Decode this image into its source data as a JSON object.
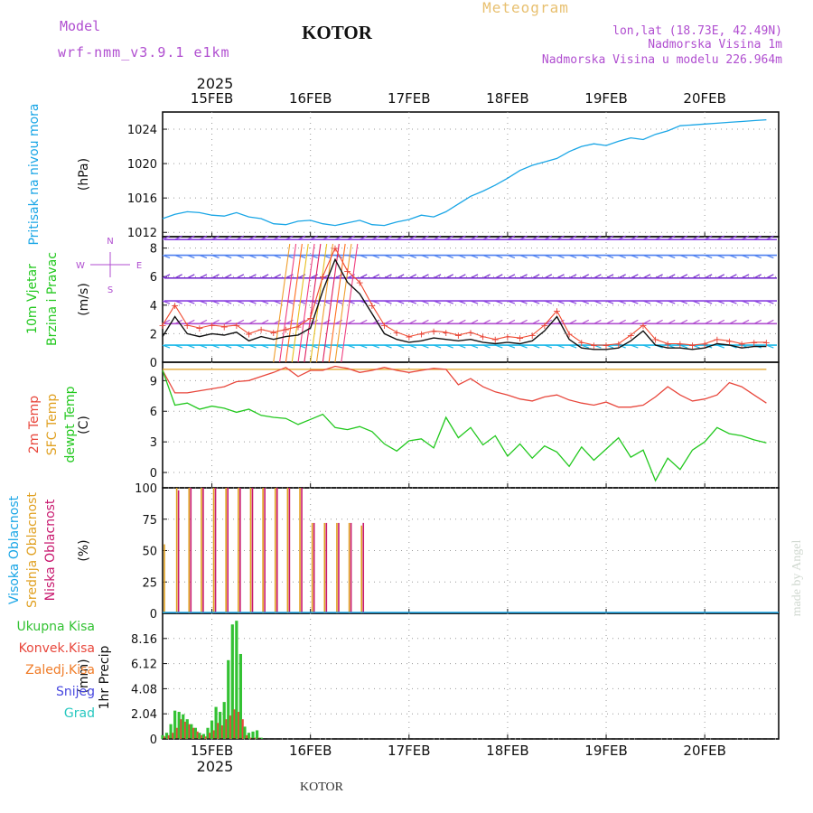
{
  "header": {
    "model_label": "Model",
    "model_name": "wrf-nmm_v3.9.1 e1km",
    "station": "KOTOR",
    "title": "Meteogram",
    "lonlat": "lon,lat (18.73E, 42.49N)",
    "elevation": "Nadmorska Visina 1m",
    "model_elevation": "Nadmorska Visina u modelu 226.964m",
    "year_top": "2025",
    "year_bottom": "2025",
    "footer_station": "KOTOR",
    "credit": "made by Angel"
  },
  "colors": {
    "pressure": "#1aa6e6",
    "temp": "#e8473c",
    "sfc_temp": "#e0a020",
    "dewpt": "#22c81e",
    "high_cloud": "#1aa6e6",
    "mid_cloud": "#e0a020",
    "low_cloud": "#c8186e",
    "total_precip": "#33c233",
    "conv_precip": "#e8473c",
    "frozen_precip": "#f07c28",
    "snow": "#4848e0",
    "graupel": "#28c8c0",
    "wind_label": "#22c81e",
    "wind_label2": "#22c81e",
    "compass": "#b04ed0"
  },
  "chart_data": [
    {
      "type": "line",
      "panel": "pressure",
      "ylabel_lines": [
        "Pritisak na nivou mora"
      ],
      "unit": "(hPa)",
      "x_ticks": [
        "15FEB",
        "16FEB",
        "17FEB",
        "18FEB",
        "19FEB",
        "20FEB"
      ],
      "ylim": [
        1011.5,
        1026
      ],
      "yticks": [
        "1012",
        "1016",
        "1020",
        "1024"
      ],
      "ytick_values": [
        1012,
        1016,
        1020,
        1024
      ],
      "x_hours": [
        0,
        3,
        6,
        9,
        12,
        15,
        18,
        21,
        24,
        27,
        30,
        33,
        36,
        39,
        42,
        45,
        48,
        51,
        54,
        57,
        60,
        63,
        66,
        69,
        72,
        75,
        78,
        81,
        84,
        87,
        90,
        93,
        96,
        99,
        102,
        105,
        108,
        111,
        114,
        117,
        120,
        123,
        126,
        129,
        132,
        135,
        138,
        141,
        144,
        147
      ],
      "series": [
        {
          "values": [
            1013.6,
            1014.1,
            1014.4,
            1014.3,
            1014.0,
            1013.9,
            1014.3,
            1013.8,
            1013.6,
            1013.0,
            1012.9,
            1013.3,
            1013.4,
            1013.0,
            1012.8,
            1013.1,
            1013.4,
            1012.9,
            1012.8,
            1013.2,
            1013.5,
            1014.0,
            1013.8,
            1014.4,
            1015.3,
            1016.2,
            1016.8,
            1017.5,
            1018.3,
            1019.2,
            1019.8,
            1020.2,
            1020.6,
            1021.4,
            1022.0,
            1022.3,
            1022.1,
            1022.6,
            1023.0,
            1022.8,
            1023.4,
            1023.8,
            1024.4,
            1024.5,
            1024.6,
            1024.7,
            1024.8,
            1024.9,
            1025.0,
            1025.1
          ]
        }
      ]
    },
    {
      "type": "line",
      "panel": "wind",
      "ylabel_lines": [
        "10m Vjetar",
        "Brzina i Pravac"
      ],
      "unit": "(m/s)",
      "ylim": [
        0,
        8.8
      ],
      "yticks": [
        "0",
        "2",
        "4",
        "6",
        "8"
      ],
      "ytick_values": [
        0,
        2,
        4,
        6,
        8
      ],
      "compass": [
        "N",
        "E",
        "S",
        "W"
      ],
      "x_hours": [
        0,
        3,
        6,
        9,
        12,
        15,
        18,
        21,
        24,
        27,
        30,
        33,
        36,
        39,
        42,
        45,
        48,
        51,
        54,
        57,
        60,
        63,
        66,
        69,
        72,
        75,
        78,
        81,
        84,
        87,
        90,
        93,
        96,
        99,
        102,
        105,
        108,
        111,
        114,
        117,
        120,
        123,
        126,
        129,
        132,
        135,
        138,
        141,
        144,
        147
      ],
      "series": [
        {
          "name": "speed",
          "values": [
            1.8,
            3.2,
            2.0,
            1.8,
            2.0,
            1.9,
            2.1,
            1.5,
            1.8,
            1.6,
            1.8,
            1.9,
            2.4,
            5.0,
            7.2,
            5.6,
            4.8,
            3.4,
            2.0,
            1.6,
            1.4,
            1.5,
            1.7,
            1.6,
            1.5,
            1.6,
            1.4,
            1.3,
            1.4,
            1.3,
            1.5,
            2.2,
            3.2,
            1.6,
            1.0,
            0.9,
            0.9,
            1.0,
            1.5,
            2.2,
            1.2,
            1.0,
            1.0,
            0.9,
            1.0,
            1.3,
            1.2,
            1.0,
            1.1,
            1.1
          ]
        },
        {
          "name": "gust",
          "values": [
            2.6,
            4.0,
            2.6,
            2.4,
            2.6,
            2.5,
            2.6,
            2.0,
            2.3,
            2.1,
            2.3,
            2.5,
            3.1,
            6.0,
            8.0,
            6.4,
            5.6,
            4.0,
            2.6,
            2.1,
            1.8,
            2.0,
            2.2,
            2.1,
            1.9,
            2.1,
            1.8,
            1.6,
            1.8,
            1.7,
            1.9,
            2.6,
            3.6,
            2.0,
            1.4,
            1.2,
            1.2,
            1.3,
            1.9,
            2.6,
            1.6,
            1.3,
            1.3,
            1.2,
            1.3,
            1.6,
            1.5,
            1.3,
            1.4,
            1.4
          ]
        }
      ]
    },
    {
      "type": "line",
      "panel": "temperature",
      "ylabel_lines": [
        "2m Temp",
        "SFC Temp",
        "dewpt Temp"
      ],
      "unit": "(C)",
      "ylim": [
        -1.5,
        10.8
      ],
      "yticks": [
        "0",
        "3",
        "6",
        "9"
      ],
      "ytick_values": [
        0,
        3,
        6,
        9
      ],
      "x_hours": [
        0,
        3,
        6,
        9,
        12,
        15,
        18,
        21,
        24,
        27,
        30,
        33,
        36,
        39,
        42,
        45,
        48,
        51,
        54,
        57,
        60,
        63,
        66,
        69,
        72,
        75,
        78,
        81,
        84,
        87,
        90,
        93,
        96,
        99,
        102,
        105,
        108,
        111,
        114,
        117,
        120,
        123,
        126,
        129,
        132,
        135,
        138,
        141,
        144,
        147
      ],
      "series": [
        {
          "name": "2m Temp",
          "values": [
            10.0,
            7.8,
            7.8,
            8.0,
            8.2,
            8.4,
            8.9,
            9.0,
            9.4,
            9.8,
            10.3,
            9.4,
            10.0,
            10.0,
            10.4,
            10.2,
            9.8,
            10.0,
            10.3,
            10.0,
            9.8,
            10.0,
            10.2,
            10.1,
            8.6,
            9.2,
            8.4,
            7.9,
            7.6,
            7.2,
            7.0,
            7.4,
            7.6,
            7.1,
            6.8,
            6.6,
            6.9,
            6.4,
            6.4,
            6.6,
            7.4,
            8.4,
            7.6,
            7.0,
            7.2,
            7.6,
            8.8,
            8.4,
            7.6,
            6.8
          ]
        },
        {
          "name": "SFC Temp",
          "values": [
            10.1,
            10.1,
            10.1,
            10.1,
            10.1,
            10.1,
            10.1,
            10.1,
            10.1,
            10.1,
            10.1,
            10.1,
            10.1,
            10.1,
            10.1,
            10.1,
            10.1,
            10.1,
            10.1,
            10.1,
            10.1,
            10.1,
            10.1,
            10.1,
            10.1,
            10.1,
            10.1,
            10.1,
            10.1,
            10.1,
            10.1,
            10.1,
            10.1,
            10.1,
            10.1,
            10.1,
            10.1,
            10.1,
            10.1,
            10.1,
            10.1,
            10.1,
            10.1,
            10.1,
            10.1,
            10.1,
            10.1,
            10.1,
            10.1,
            10.1
          ]
        },
        {
          "name": "dewpt Temp",
          "values": [
            10.0,
            6.6,
            6.8,
            6.2,
            6.5,
            6.3,
            5.9,
            6.2,
            5.6,
            5.4,
            5.3,
            4.7,
            5.2,
            5.7,
            4.4,
            4.2,
            4.5,
            4.0,
            2.8,
            2.1,
            3.1,
            3.3,
            2.4,
            5.4,
            3.4,
            4.4,
            2.7,
            3.6,
            1.6,
            2.8,
            1.4,
            2.6,
            2.0,
            0.6,
            2.5,
            1.2,
            2.3,
            3.4,
            1.5,
            2.2,
            -0.8,
            1.4,
            0.3,
            2.2,
            3.0,
            4.4,
            3.8,
            3.6,
            3.2,
            2.9
          ]
        }
      ]
    },
    {
      "type": "bar",
      "panel": "clouds",
      "ylabel_lines": [
        "Visoka Oblacnost",
        "Srednja Oblacnost",
        "Niska Oblacnost"
      ],
      "unit": "(%)",
      "ylim": [
        0,
        100
      ],
      "yticks": [
        "0",
        "25",
        "50",
        "75",
        "100"
      ],
      "ytick_values": [
        0,
        25,
        50,
        75,
        100
      ],
      "x_hours": [
        0,
        3,
        6,
        9,
        12,
        15,
        18,
        21,
        24,
        27,
        30,
        33,
        36,
        39,
        42,
        45,
        48,
        51,
        54,
        57,
        60,
        63,
        66,
        69,
        72,
        75,
        78,
        81,
        84,
        87,
        90,
        93,
        96,
        99,
        102,
        105,
        108,
        111,
        114,
        117,
        120,
        123,
        126,
        129,
        132,
        135,
        138,
        141,
        144,
        147
      ],
      "series": [
        {
          "name": "Visoka Oblacnost",
          "values": [
            0,
            0,
            0,
            0,
            0,
            0,
            0,
            0,
            0,
            0,
            0,
            0,
            0,
            0,
            0,
            0,
            0,
            0,
            0,
            0,
            0,
            0,
            0,
            0,
            0,
            0,
            0,
            0,
            0,
            0,
            0,
            0,
            0,
            0,
            0,
            0,
            0,
            0,
            0,
            0,
            0,
            0,
            0,
            0,
            0,
            0,
            0,
            0,
            0,
            0
          ]
        },
        {
          "name": "Srednja Oblacnost",
          "values": [
            55,
            100,
            100,
            100,
            100,
            100,
            100,
            100,
            100,
            100,
            100,
            100,
            72,
            72,
            72,
            72,
            70,
            0,
            0,
            0,
            0,
            0,
            0,
            0,
            0,
            0,
            0,
            0,
            0,
            0,
            0,
            0,
            0,
            0,
            0,
            0,
            0,
            0,
            0,
            0,
            0,
            0,
            0,
            0,
            0,
            0,
            0,
            0,
            0,
            0
          ]
        },
        {
          "name": "Niska Oblacnost",
          "values": [
            0,
            98,
            100,
            100,
            100,
            100,
            100,
            100,
            100,
            100,
            100,
            100,
            72,
            72,
            72,
            72,
            72,
            0,
            0,
            0,
            0,
            0,
            0,
            0,
            0,
            0,
            0,
            0,
            0,
            0,
            0,
            0,
            0,
            0,
            0,
            0,
            0,
            0,
            0,
            0,
            0,
            0,
            0,
            0,
            0,
            0,
            0,
            0,
            0,
            0
          ]
        }
      ]
    },
    {
      "type": "bar",
      "panel": "precip",
      "ylabel_lines": [
        "1hr Precip"
      ],
      "unit": "(mm)",
      "legend": [
        "Ukupna Kisa",
        "Konvek.Kisa",
        "Zaledj.Kisa",
        "Snijeg",
        "Grad"
      ],
      "ylim": [
        0,
        10.2
      ],
      "yticks": [
        "0",
        "2.04",
        "4.08",
        "6.12",
        "8.16"
      ],
      "ytick_values": [
        0,
        2.04,
        4.08,
        6.12,
        8.16
      ],
      "x_hours": [
        0,
        1,
        2,
        3,
        4,
        5,
        6,
        7,
        8,
        9,
        10,
        11,
        12,
        13,
        14,
        15,
        16,
        17,
        18,
        19,
        20,
        21,
        22,
        23,
        24,
        25,
        26,
        27,
        28,
        29,
        30
      ],
      "series": [
        {
          "name": "Ukupna Kisa",
          "values": [
            0.3,
            0.5,
            1.2,
            2.3,
            2.2,
            2.0,
            1.6,
            1.2,
            0.9,
            0.5,
            0.4,
            0.9,
            1.5,
            2.6,
            2.2,
            3.0,
            6.4,
            9.3,
            9.6,
            6.9,
            1.0,
            0.5,
            0.6,
            0.7,
            0.1,
            0,
            0,
            0,
            0,
            0,
            0
          ]
        },
        {
          "name": "Konvek.Kisa",
          "values": [
            0.2,
            0.3,
            0.5,
            0.9,
            1.6,
            1.4,
            1.2,
            0.9,
            0.6,
            0.3,
            0.2,
            0.5,
            0.7,
            1.3,
            1.1,
            1.6,
            1.9,
            2.4,
            2.2,
            1.6,
            0.3,
            0.1,
            0.1,
            0.1,
            0,
            0,
            0,
            0,
            0,
            0,
            0
          ]
        }
      ]
    }
  ]
}
